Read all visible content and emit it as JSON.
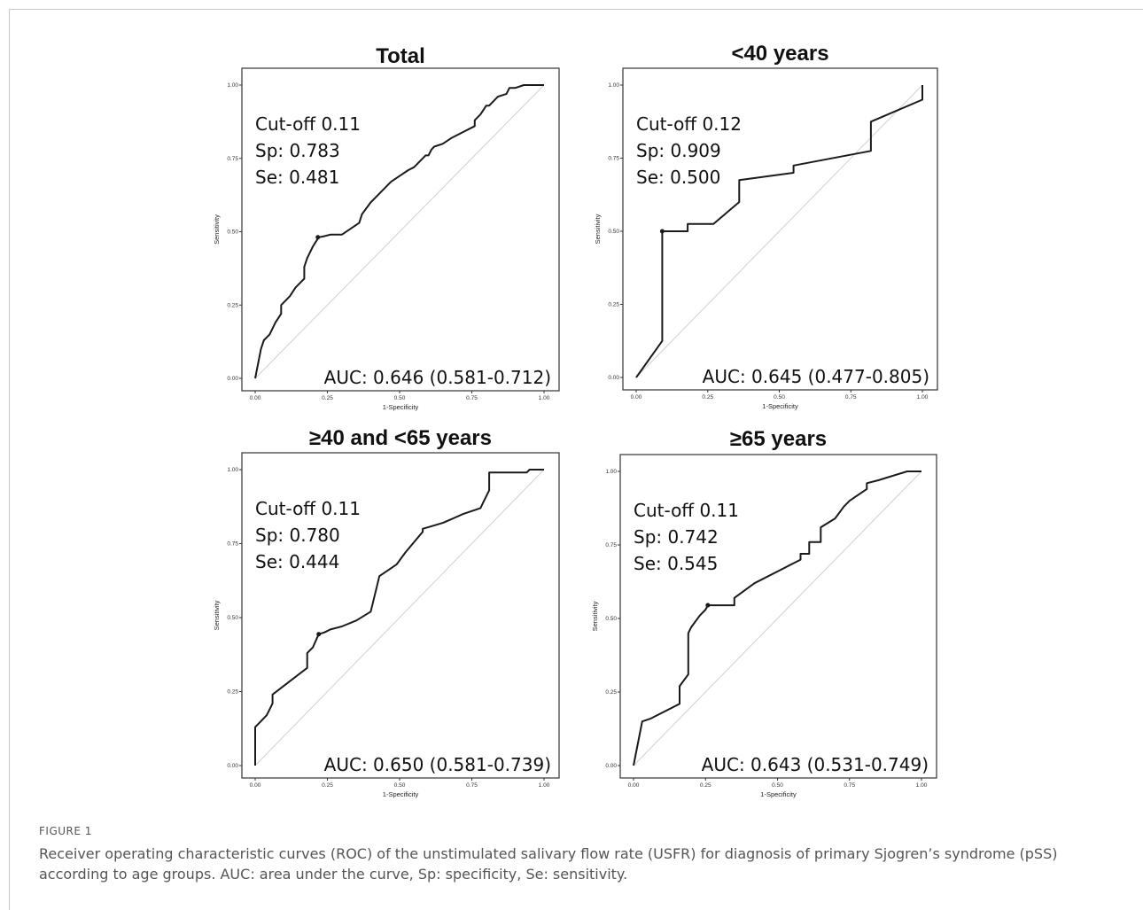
{
  "figure": {
    "label": "FIGURE 1",
    "caption": "Receiver operating characteristic curves (ROC) of the unstimulated salivary flow rate (USFR) for diagnosis of primary Sjogren’s syndrome (pSS) according to age groups. AUC: area under the curve, Sp: specificity, Se: sensitivity."
  },
  "colors": {
    "curve": "#1a1a1a",
    "diagonal": "#d0d0d0",
    "border": "#333333",
    "caption": "#555555"
  },
  "chart_data": [
    {
      "type": "line",
      "title": "Total",
      "xlabel": "1-Specificity",
      "ylabel": "Sensitivity",
      "xlim": [
        0,
        1
      ],
      "ylim": [
        0,
        1
      ],
      "xticks": [
        "0.00",
        "0.25",
        "0.50",
        "0.75",
        "1.00"
      ],
      "yticks": [
        "0.00",
        "0.25",
        "0.50",
        "0.75",
        "1.00"
      ],
      "annotations": [
        "Cut-off 0.11",
        "Sp: 0.783",
        "Se: 0.481"
      ],
      "auc_label": "AUC: 0.646 (0.581-0.712)",
      "cutoff_point": [
        0.217,
        0.481
      ],
      "series": [
        {
          "x": [
            0,
            0.02,
            0.03,
            0.05,
            0.07,
            0.09,
            0.09,
            0.12,
            0.14,
            0.17,
            0.17,
            0.18,
            0.2,
            0.22,
            0.24,
            0.26,
            0.3,
            0.33,
            0.36,
            0.37,
            0.4,
            0.44,
            0.47,
            0.5,
            0.53,
            0.55,
            0.57,
            0.59,
            0.6,
            0.61,
            0.62,
            0.65,
            0.68,
            0.72,
            0.74,
            0.76,
            0.76,
            0.78,
            0.8,
            0.81,
            0.84,
            0.87,
            0.88,
            0.9,
            0.93,
            0.94,
            0.95,
            0.99,
            1.0
          ],
          "y": [
            0,
            0.1,
            0.13,
            0.15,
            0.19,
            0.22,
            0.25,
            0.28,
            0.31,
            0.34,
            0.38,
            0.41,
            0.45,
            0.481,
            0.485,
            0.49,
            0.49,
            0.51,
            0.53,
            0.56,
            0.6,
            0.64,
            0.67,
            0.69,
            0.71,
            0.72,
            0.74,
            0.76,
            0.76,
            0.78,
            0.79,
            0.8,
            0.82,
            0.84,
            0.85,
            0.86,
            0.88,
            0.9,
            0.93,
            0.93,
            0.96,
            0.97,
            0.99,
            0.99,
            1.0,
            1.0,
            1.0,
            1.0,
            1.0
          ]
        }
      ]
    },
    {
      "type": "line",
      "title": "<40 years",
      "xlabel": "1-Specificity",
      "ylabel": "Sensitivity",
      "xlim": [
        0,
        1
      ],
      "ylim": [
        0,
        1
      ],
      "xticks": [
        "0.00",
        "0.25",
        "0.50",
        "0.75",
        "1.00"
      ],
      "yticks": [
        "0.00",
        "0.25",
        "0.50",
        "0.75",
        "1.00"
      ],
      "annotations": [
        "Cut-off 0.12",
        "Sp: 0.909",
        "Se: 0.500"
      ],
      "auc_label": "AUC: 0.645 (0.477-0.805)",
      "cutoff_point": [
        0.091,
        0.5
      ],
      "series": [
        {
          "x": [
            0,
            0.091,
            0.091,
            0.18,
            0.18,
            0.27,
            0.36,
            0.36,
            0.55,
            0.55,
            0.82,
            0.82,
            1.0,
            1.0
          ],
          "y": [
            0,
            0.125,
            0.5,
            0.5,
            0.525,
            0.525,
            0.6,
            0.675,
            0.7,
            0.725,
            0.775,
            0.875,
            0.95,
            1.0
          ]
        }
      ]
    },
    {
      "type": "line",
      "title": "≥40 and <65 years",
      "xlabel": "1-Specificity",
      "ylabel": "Sensitivity",
      "xlim": [
        0,
        1
      ],
      "ylim": [
        0,
        1
      ],
      "xticks": [
        "0.00",
        "0.25",
        "0.50",
        "0.75",
        "1.00"
      ],
      "yticks": [
        "0.00",
        "0.25",
        "0.50",
        "0.75",
        "1.00"
      ],
      "annotations": [
        "Cut-off 0.11",
        "Sp: 0.780",
        "Se: 0.444"
      ],
      "auc_label": "AUC: 0.650 (0.581-0.739)",
      "cutoff_point": [
        0.22,
        0.444
      ],
      "series": [
        {
          "x": [
            0,
            0,
            0.02,
            0.04,
            0.06,
            0.06,
            0.1,
            0.14,
            0.18,
            0.18,
            0.2,
            0.22,
            0.24,
            0.26,
            0.3,
            0.35,
            0.4,
            0.43,
            0.46,
            0.49,
            0.52,
            0.58,
            0.58,
            0.65,
            0.72,
            0.78,
            0.79,
            0.81,
            0.81,
            0.84,
            0.88,
            0.9,
            0.94,
            0.95,
            0.98,
            0.99,
            1.0
          ],
          "y": [
            0,
            0.13,
            0.15,
            0.17,
            0.21,
            0.24,
            0.27,
            0.3,
            0.33,
            0.38,
            0.4,
            0.444,
            0.45,
            0.46,
            0.47,
            0.49,
            0.52,
            0.64,
            0.66,
            0.68,
            0.72,
            0.79,
            0.8,
            0.82,
            0.85,
            0.87,
            0.89,
            0.93,
            0.99,
            0.99,
            0.99,
            0.99,
            0.99,
            1.0,
            1.0,
            1.0,
            1.0
          ]
        }
      ]
    },
    {
      "type": "line",
      "title": "≥65 years",
      "xlabel": "1-Specificity",
      "ylabel": "Sensitivity",
      "xlim": [
        0,
        1
      ],
      "ylim": [
        0,
        1
      ],
      "xticks": [
        "0.00",
        "0.25",
        "0.50",
        "0.75",
        "1.00"
      ],
      "yticks": [
        "0.00",
        "0.25",
        "0.50",
        "0.75",
        "1.00"
      ],
      "annotations": [
        "Cut-off 0.11",
        "Sp: 0.742",
        "Se: 0.545"
      ],
      "auc_label": "AUC: 0.643 (0.531-0.749)",
      "cutoff_point": [
        0.258,
        0.545
      ],
      "series": [
        {
          "x": [
            0,
            0.03,
            0.03,
            0.06,
            0.06,
            0.16,
            0.16,
            0.19,
            0.19,
            0.2,
            0.23,
            0.25,
            0.258,
            0.29,
            0.35,
            0.35,
            0.42,
            0.52,
            0.52,
            0.58,
            0.58,
            0.61,
            0.61,
            0.65,
            0.65,
            0.7,
            0.73,
            0.75,
            0.78,
            0.81,
            0.81,
            0.85,
            0.95,
            0.97,
            1.0
          ],
          "y": [
            0,
            0.15,
            0.15,
            0.16,
            0.16,
            0.21,
            0.27,
            0.31,
            0.45,
            0.47,
            0.51,
            0.53,
            0.545,
            0.545,
            0.545,
            0.57,
            0.62,
            0.67,
            0.67,
            0.7,
            0.72,
            0.72,
            0.76,
            0.76,
            0.81,
            0.84,
            0.88,
            0.9,
            0.92,
            0.94,
            0.96,
            0.97,
            1.0,
            1.0,
            1.0
          ]
        }
      ]
    }
  ]
}
